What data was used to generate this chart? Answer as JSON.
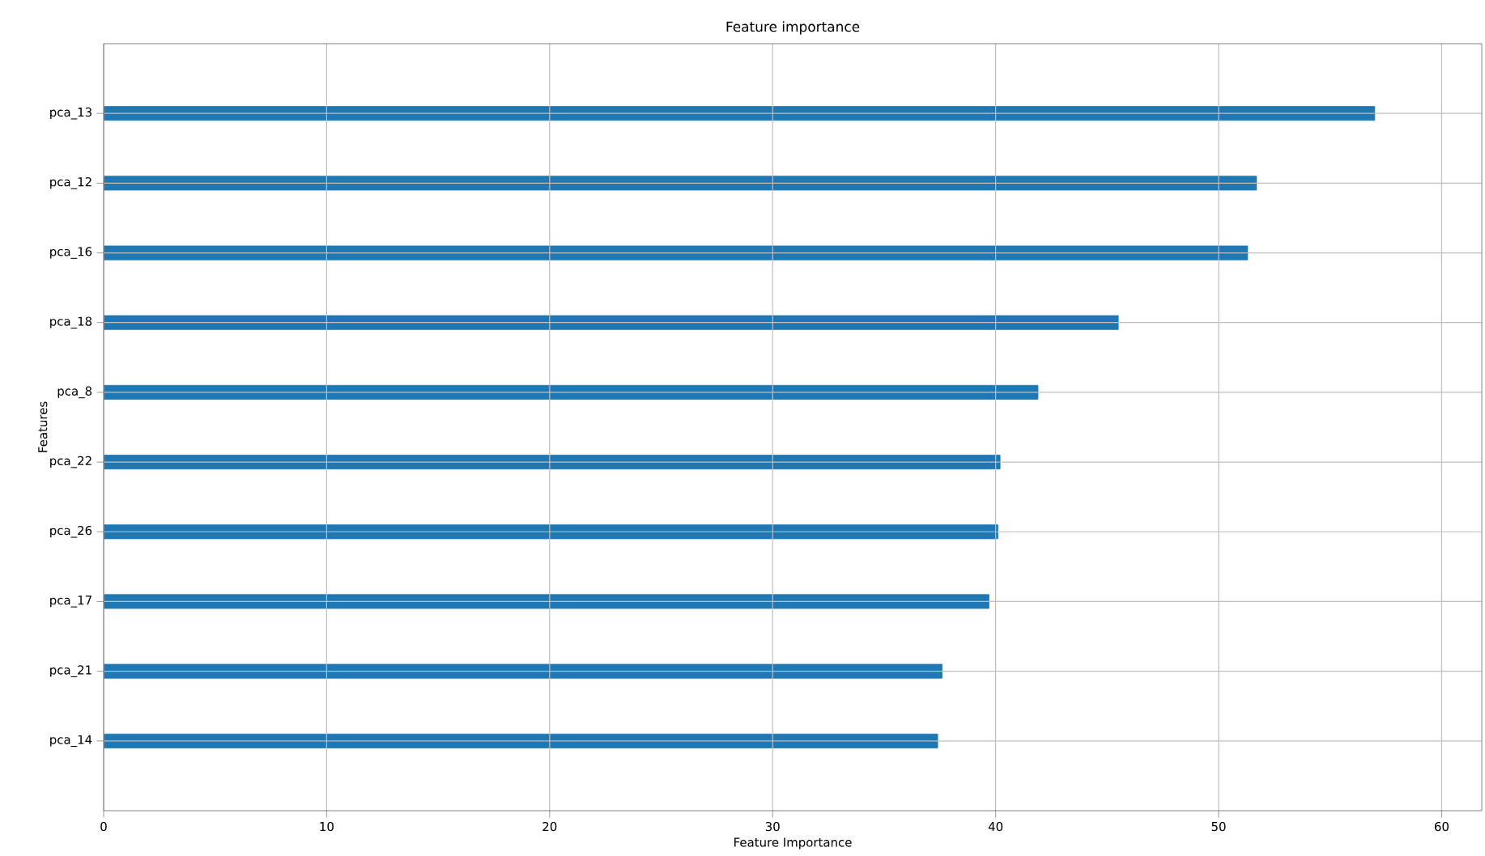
{
  "chart_data": {
    "type": "bar",
    "orientation": "horizontal",
    "title": "Feature importance",
    "xlabel": "Feature Importance",
    "ylabel": "Features",
    "categories": [
      "pca_13",
      "pca_12",
      "pca_16",
      "pca_18",
      "pca_8",
      "pca_22",
      "pca_26",
      "pca_17",
      "pca_21",
      "pca_14"
    ],
    "values": [
      57,
      51.7,
      51.3,
      45.5,
      41.9,
      40.2,
      40.1,
      39.7,
      37.6,
      37.4
    ],
    "color": "#1f77b4",
    "xlim": [
      0,
      61.8
    ],
    "xticks": [
      0,
      10,
      20,
      30,
      40,
      50,
      60
    ],
    "grid": true
  }
}
